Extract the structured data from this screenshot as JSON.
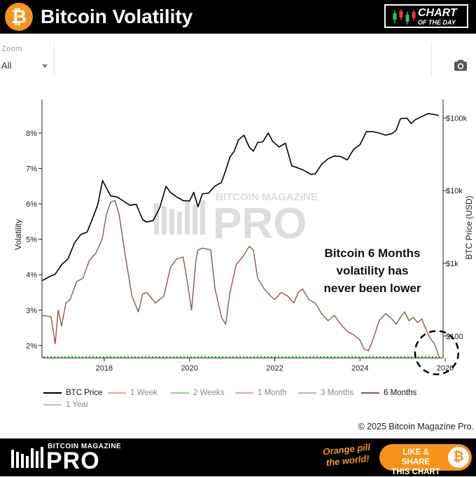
{
  "header": {
    "logo_glyph": "₿",
    "title": "Bitcoin Volatility",
    "badge_line1": "CHART",
    "badge_line2": "OF THE DAY",
    "badge_icon": "candlestick-icon"
  },
  "toolbar": {
    "zoom_label": "Zoom",
    "zoom_value": "All",
    "camera_icon": "camera-icon"
  },
  "colors": {
    "bitcoin_orange": "#f7931a",
    "btc_price": "#000000",
    "six_months": "#8d5a4e",
    "reference_line": "#22c322"
  },
  "chart_data": {
    "type": "line",
    "title": "",
    "ylabel_left": "Volatility",
    "ylabel_right": "BTC Price (USD)",
    "x_ticks": [
      "2018",
      "2020",
      "2022",
      "2024",
      "2026"
    ],
    "y_left_ticks": [
      "2%",
      "3%",
      "4%",
      "5%",
      "6%",
      "7%",
      "8%"
    ],
    "y_left_range": [
      1.65,
      8.95
    ],
    "y_right_ticks": [
      "$100",
      "$1k",
      "$10k",
      "$100k"
    ],
    "y_right_scale": "log",
    "y_right_range": [
      50,
      180000
    ],
    "x_range": [
      2016.54,
      2025.95
    ],
    "grid": false,
    "annotation": [
      "Bitcoin 6 Months",
      "volatility has",
      "never been lower"
    ],
    "reference_line": {
      "y": 1.68,
      "style": "dotted",
      "color": "#22c322"
    },
    "highlight": {
      "shape": "dashed-circle",
      "x": 2025.8,
      "y": 1.8
    },
    "series": [
      {
        "name": "BTC Price",
        "axis": "right",
        "color": "#000000",
        "x": [
          2016.55,
          2016.7,
          2016.85,
          2017.0,
          2017.15,
          2017.3,
          2017.45,
          2017.6,
          2017.75,
          2017.85,
          2017.96,
          2018.05,
          2018.15,
          2018.3,
          2018.45,
          2018.6,
          2018.75,
          2018.9,
          2019.0,
          2019.15,
          2019.3,
          2019.45,
          2019.55,
          2019.7,
          2019.85,
          2020.0,
          2020.1,
          2020.2,
          2020.3,
          2020.45,
          2020.6,
          2020.75,
          2020.85,
          2020.95,
          2021.05,
          2021.15,
          2021.28,
          2021.4,
          2021.5,
          2021.6,
          2021.72,
          2021.85,
          2021.95,
          2022.1,
          2022.25,
          2022.4,
          2022.5,
          2022.65,
          2022.85,
          2022.95,
          2023.1,
          2023.25,
          2023.4,
          2023.55,
          2023.7,
          2023.85,
          2024.0,
          2024.15,
          2024.3,
          2024.45,
          2024.6,
          2024.75,
          2024.85,
          2024.95,
          2025.1,
          2025.2,
          2025.3,
          2025.45,
          2025.6,
          2025.75,
          2025.85
        ],
        "values": [
          580,
          650,
          710,
          960,
          1150,
          1900,
          2500,
          2700,
          4500,
          6500,
          13800,
          11000,
          8500,
          8200,
          7200,
          6300,
          6500,
          4000,
          3700,
          3900,
          5800,
          11500,
          9500,
          8200,
          7300,
          7200,
          9500,
          6000,
          9000,
          9300,
          11600,
          13000,
          19000,
          29000,
          35000,
          50000,
          58000,
          40000,
          35000,
          46000,
          47000,
          62000,
          48000,
          40000,
          45000,
          22000,
          21000,
          19500,
          16800,
          17000,
          23000,
          27500,
          30000,
          29500,
          26500,
          37000,
          43000,
          65000,
          65000,
          62000,
          58000,
          61000,
          68000,
          98000,
          100000,
          84000,
          95000,
          105000,
          115000,
          112000,
          108000
        ]
      },
      {
        "name": "1 Week",
        "axis": "left",
        "color": "#f4a77f",
        "visible": false,
        "x": [],
        "values": []
      },
      {
        "name": "2 Weeks",
        "axis": "left",
        "color": "#8fcf8a",
        "visible": false,
        "x": [],
        "values": []
      },
      {
        "name": "1 Month",
        "axis": "left",
        "color": "#f19a9a",
        "visible": false,
        "x": [],
        "values": []
      },
      {
        "name": "3 Months",
        "axis": "left",
        "color": "#c5a7e3",
        "visible": false,
        "x": [],
        "values": []
      },
      {
        "name": "6 Months",
        "axis": "left",
        "color": "#8d5a4e",
        "x": [
          2016.55,
          2016.75,
          2016.85,
          2016.92,
          2017.0,
          2017.1,
          2017.2,
          2017.35,
          2017.5,
          2017.65,
          2017.8,
          2017.95,
          2018.05,
          2018.15,
          2018.25,
          2018.35,
          2018.5,
          2018.65,
          2018.8,
          2018.9,
          2019.0,
          2019.2,
          2019.4,
          2019.55,
          2019.7,
          2019.85,
          2019.95,
          2020.05,
          2020.15,
          2020.2,
          2020.3,
          2020.5,
          2020.6,
          2020.75,
          2020.85,
          2020.95,
          2021.1,
          2021.25,
          2021.4,
          2021.5,
          2021.6,
          2021.75,
          2021.9,
          2022.0,
          2022.15,
          2022.3,
          2022.45,
          2022.55,
          2022.65,
          2022.8,
          2022.95,
          2023.1,
          2023.25,
          2023.4,
          2023.55,
          2023.7,
          2023.85,
          2024.0,
          2024.1,
          2024.2,
          2024.3,
          2024.45,
          2024.6,
          2024.75,
          2024.85,
          2024.95,
          2025.05,
          2025.15,
          2025.25,
          2025.35,
          2025.45,
          2025.55,
          2025.65,
          2025.75,
          2025.85
        ],
        "values": [
          2.85,
          2.82,
          2.05,
          3.0,
          2.55,
          3.2,
          3.3,
          3.8,
          3.9,
          4.4,
          4.6,
          5.0,
          5.7,
          6.05,
          6.1,
          5.7,
          4.5,
          3.4,
          2.95,
          3.45,
          3.5,
          3.2,
          3.4,
          4.2,
          4.45,
          4.5,
          3.8,
          3.0,
          4.4,
          4.7,
          4.75,
          4.7,
          3.6,
          2.8,
          2.6,
          3.5,
          4.3,
          4.5,
          4.8,
          4.7,
          3.9,
          3.6,
          3.4,
          3.3,
          3.5,
          3.4,
          3.2,
          3.5,
          3.6,
          3.3,
          3.2,
          2.9,
          2.7,
          2.85,
          2.6,
          2.4,
          2.3,
          2.15,
          1.9,
          1.85,
          2.15,
          2.7,
          2.9,
          2.75,
          2.6,
          2.8,
          2.95,
          2.7,
          2.8,
          2.65,
          2.75,
          2.45,
          2.2,
          2.05,
          1.7
        ]
      },
      {
        "name": "1 Year",
        "axis": "left",
        "color": "#e7a8d6",
        "visible": false,
        "x": [],
        "values": []
      }
    ]
  },
  "watermark": {
    "line1": "BITCOIN MAGAZINE",
    "line2": "PRO"
  },
  "copyright": "© 2025 Bitcoin Magazine Pro.",
  "footer": {
    "brand_small": "BITCOIN MAGAZINE",
    "brand_big": "PRO",
    "tagline_line1": "Orange pill",
    "tagline_line2": "the world!",
    "share_line1": "LIKE & SHARE",
    "share_line2": "THIS CHART",
    "share_coin": "₿"
  }
}
